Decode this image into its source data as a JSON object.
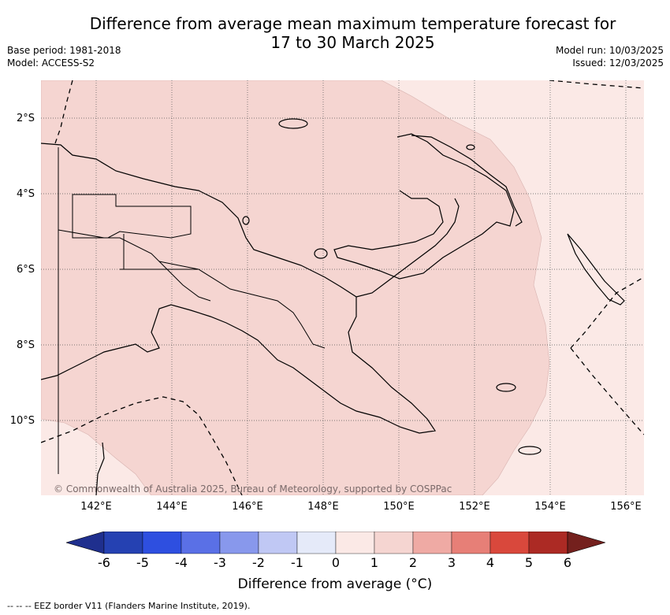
{
  "header": {
    "title_line1": "Difference from average mean maximum temperature forecast for",
    "title_line2": "17 to 30 March 2025",
    "base_period": "Base period: 1981-2018",
    "model": "Model: ACCESS-S2",
    "model_run": "Model run: 10/03/2025",
    "issued": "Issued: 12/03/2025"
  },
  "map": {
    "lat_ticks": [
      "2°S",
      "4°S",
      "6°S",
      "8°S",
      "10°S"
    ],
    "lon_ticks": [
      "142°E",
      "144°E",
      "146°E",
      "148°E",
      "150°E",
      "152°E",
      "154°E",
      "156°E"
    ],
    "credit": "© Commonwealth of Australia 2025, Bureau of Meteorology, supported by COSPPac",
    "region_colors": {
      "category_0_to_1": "#fbe9e6",
      "category_1_to_2": "#f5d5d1"
    }
  },
  "colorbar": {
    "labels": [
      "-6",
      "-5",
      "-4",
      "-3",
      "-2",
      "-1",
      "0",
      "1",
      "2",
      "3",
      "4",
      "5",
      "6"
    ],
    "colors": [
      "#1f2f8e",
      "#2541b2",
      "#2e4fe0",
      "#5a70e6",
      "#8898ec",
      "#c0c8f4",
      "#e5eaf9",
      "#fbe9e6",
      "#f5d5d1",
      "#efaaa4",
      "#e77f77",
      "#d9483c",
      "#ac2a24",
      "#74201d"
    ],
    "title": "Difference from average (°C)"
  },
  "footnote": "-- -- -- EEZ border V11 (Flanders Marine Institute, 2019)."
}
